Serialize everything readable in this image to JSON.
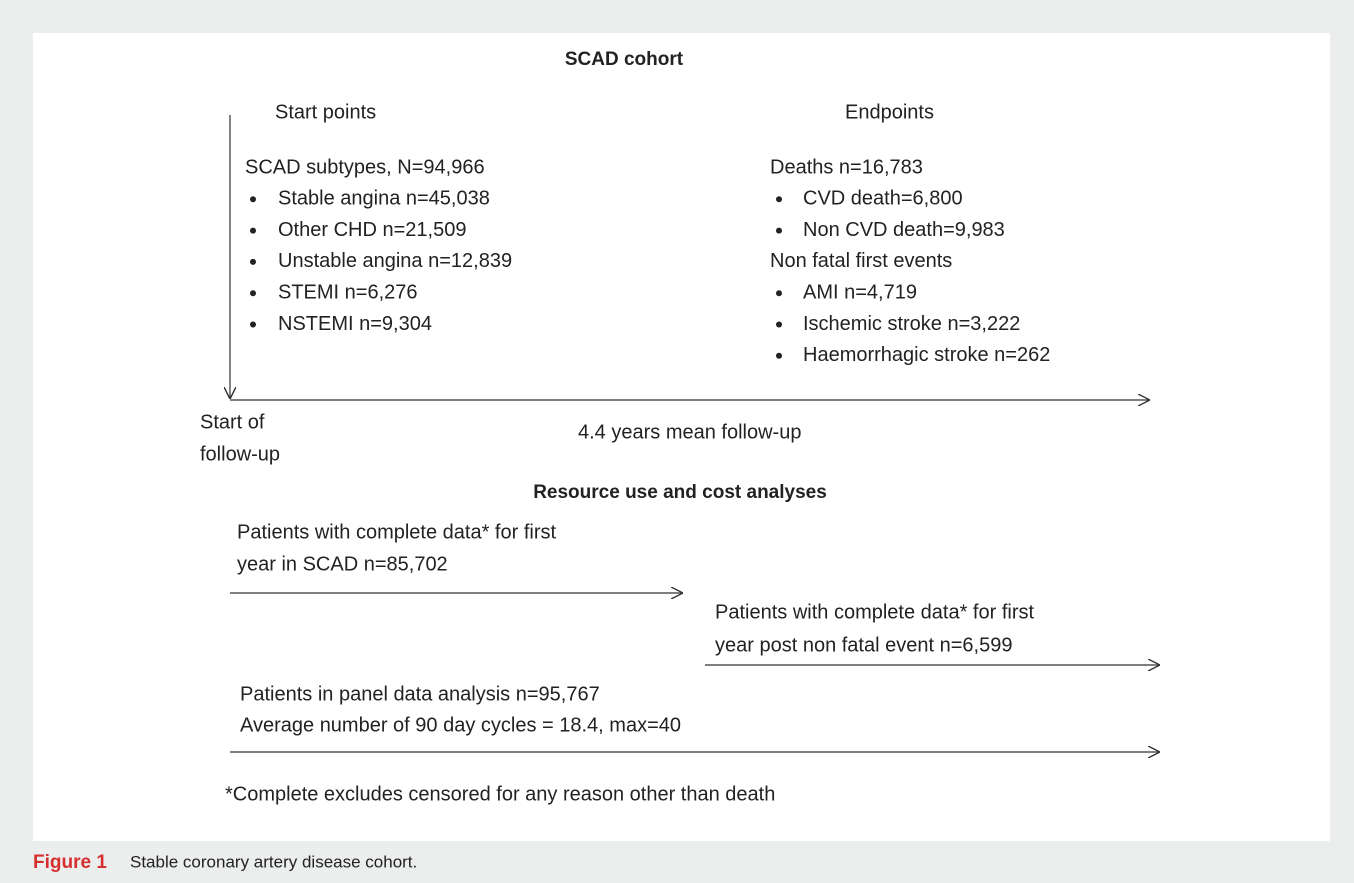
{
  "figure": {
    "title": "SCAD cohort",
    "start_points": {
      "heading": "Start points",
      "group": "SCAD subtypes, N=94,966",
      "items": [
        "Stable angina n=45,038",
        "Other CHD n=21,509",
        "Unstable angina n=12,839",
        "STEMI n=6,276",
        "NSTEMI n=9,304"
      ]
    },
    "endpoints": {
      "heading": "Endpoints",
      "groups": [
        {
          "label": "Deaths n=16,783",
          "items": [
            "CVD death=6,800",
            "Non CVD death=9,983"
          ]
        },
        {
          "label": "Non fatal first events",
          "items": [
            "AMI n=4,719",
            "Ischemic stroke n=3,222",
            "Haemorrhagic stroke n=262"
          ]
        }
      ]
    },
    "start_label": [
      "Start of",
      "follow-up"
    ],
    "follow_up_label": "4.4 years mean follow-up",
    "resource_title": "Resource use and cost analyses",
    "resource_blocks": [
      [
        "Patients with complete data* for first",
        "year in SCAD n=85,702"
      ],
      [
        "Patients with complete data* for first",
        "year post non fatal event n=6,599"
      ],
      [
        "Patients in panel data analysis n=95,767",
        "Average number of 90 day cycles = 18.4, max=40"
      ]
    ],
    "footnote": "*Complete excludes censored for any reason other than death"
  },
  "caption": {
    "label": "Figure 1",
    "text": "Stable coronary artery disease cohort."
  }
}
